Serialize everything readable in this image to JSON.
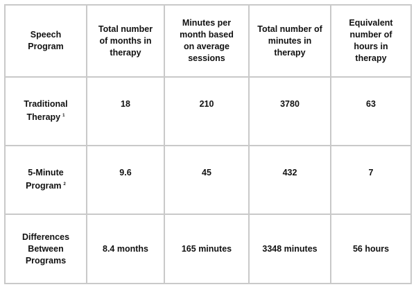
{
  "table": {
    "headers": [
      "Speech Program",
      "Total number of months in therapy",
      "Minutes per month based on average sessions",
      "Total number of minutes in therapy",
      "Equivalent number of hours in therapy"
    ],
    "rows": [
      {
        "label": "Traditional Therapy",
        "note": "1",
        "cells": [
          "18",
          "210",
          "3780",
          "63"
        ]
      },
      {
        "label": "5-Minute Program",
        "note": "2",
        "cells": [
          "9.6",
          "45",
          "432",
          "7"
        ]
      },
      {
        "label": "Differences Between Programs",
        "note": "",
        "cells": [
          "8.4 months",
          "165 minutes",
          "3348 minutes",
          "56 hours"
        ]
      }
    ]
  }
}
